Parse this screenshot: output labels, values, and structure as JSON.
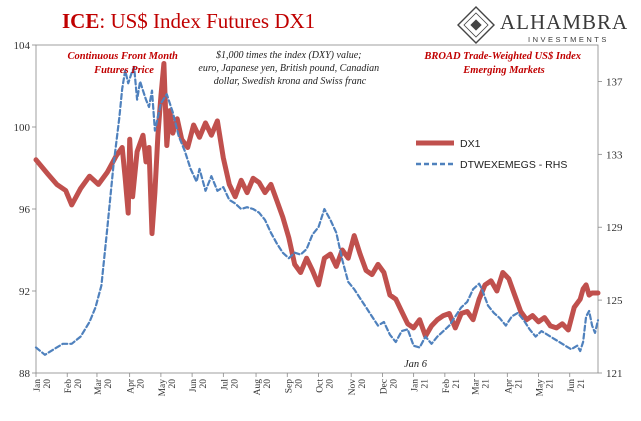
{
  "title": {
    "ice": "ICE",
    "rest": ": US$ Index Futures DX1"
  },
  "brand": {
    "name": "ALHAMBRA",
    "sub": "INVESTMENTS",
    "logo_icon": "alhambra-diamond-logo"
  },
  "notes": {
    "left": [
      "Continuous  Front Month",
      "Futures Price"
    ],
    "middle": [
      "$1,000 times the index (DXY) value;",
      "euro, Japanese yen, British pound, Canadian",
      "dollar, Swedish krona and Swiss franc"
    ],
    "right": [
      "BROAD Trade-Weighted US$ Index",
      "Emerging Markets"
    ]
  },
  "annotation": "Jan 6",
  "colors": {
    "dx1": "#c0504d",
    "em": "#4f81bd",
    "title": "#c00000"
  },
  "chart_data": {
    "type": "line",
    "x_ticks": [
      {
        "label": [
          "Jan",
          "20"
        ],
        "i": 0
      },
      {
        "label": [
          "Feb",
          "20"
        ],
        "i": 21
      },
      {
        "label": [
          "Mar",
          "20"
        ],
        "i": 41
      },
      {
        "label": [
          "Apr",
          "20"
        ],
        "i": 63
      },
      {
        "label": [
          "May",
          "20"
        ],
        "i": 84
      },
      {
        "label": [
          "Jun",
          "20"
        ],
        "i": 105
      },
      {
        "label": [
          "Jul",
          "20"
        ],
        "i": 126
      },
      {
        "label": [
          "Aug",
          "20"
        ],
        "i": 148
      },
      {
        "label": [
          "Sep",
          "20"
        ],
        "i": 169
      },
      {
        "label": [
          "Oct",
          "20"
        ],
        "i": 190
      },
      {
        "label": [
          "Nov",
          "20"
        ],
        "i": 212
      },
      {
        "label": [
          "Dec",
          "20"
        ],
        "i": 233
      },
      {
        "label": [
          "Jan",
          "21"
        ],
        "i": 254
      },
      {
        "label": [
          "Feb",
          "21"
        ],
        "i": 275
      },
      {
        "label": [
          "Mar",
          "21"
        ],
        "i": 295
      },
      {
        "label": [
          "Apr",
          "21"
        ],
        "i": 317
      },
      {
        "label": [
          "May",
          "21"
        ],
        "i": 338
      },
      {
        "label": [
          "Jun",
          "21"
        ],
        "i": 359
      }
    ],
    "x_count": 379,
    "y_left": {
      "min": 88,
      "max": 104,
      "ticks": [
        88,
        92,
        96,
        100,
        104
      ]
    },
    "y_right": {
      "min": 121,
      "max": 139,
      "ticks": [
        121,
        125,
        129,
        133,
        137
      ]
    },
    "series": [
      {
        "name": "DX1",
        "axis": "left",
        "style": "solid",
        "points": [
          [
            0,
            98.4
          ],
          [
            8,
            97.7
          ],
          [
            14,
            97.2
          ],
          [
            20,
            96.9
          ],
          [
            24,
            96.2
          ],
          [
            30,
            97.0
          ],
          [
            36,
            97.6
          ],
          [
            42,
            97.2
          ],
          [
            48,
            97.8
          ],
          [
            54,
            98.6
          ],
          [
            58,
            99.0
          ],
          [
            60,
            97.5
          ],
          [
            62,
            95.8
          ],
          [
            63,
            99.4
          ],
          [
            65,
            96.6
          ],
          [
            68,
            98.8
          ],
          [
            72,
            99.6
          ],
          [
            74,
            98.3
          ],
          [
            76,
            99.0
          ],
          [
            78,
            94.8
          ],
          [
            80,
            96.8
          ],
          [
            82,
            99.6
          ],
          [
            84,
            101.5
          ],
          [
            86,
            103.1
          ],
          [
            88,
            99.1
          ],
          [
            90,
            100.8
          ],
          [
            92,
            99.7
          ],
          [
            95,
            100.4
          ],
          [
            98,
            99.4
          ],
          [
            102,
            99.0
          ],
          [
            106,
            100.1
          ],
          [
            110,
            99.5
          ],
          [
            114,
            100.2
          ],
          [
            118,
            99.6
          ],
          [
            122,
            100.3
          ],
          [
            126,
            98.5
          ],
          [
            130,
            97.2
          ],
          [
            134,
            96.6
          ],
          [
            138,
            97.4
          ],
          [
            142,
            96.8
          ],
          [
            146,
            97.5
          ],
          [
            150,
            97.3
          ],
          [
            154,
            96.8
          ],
          [
            158,
            97.2
          ],
          [
            162,
            96.4
          ],
          [
            166,
            95.6
          ],
          [
            170,
            94.6
          ],
          [
            174,
            93.3
          ],
          [
            178,
            92.9
          ],
          [
            182,
            93.6
          ],
          [
            186,
            93.0
          ],
          [
            190,
            92.3
          ],
          [
            194,
            93.6
          ],
          [
            198,
            93.8
          ],
          [
            202,
            93.2
          ],
          [
            206,
            94.0
          ],
          [
            210,
            93.6
          ],
          [
            214,
            94.7
          ],
          [
            218,
            93.8
          ],
          [
            222,
            93.0
          ],
          [
            226,
            92.8
          ],
          [
            230,
            93.3
          ],
          [
            234,
            92.9
          ],
          [
            238,
            91.8
          ],
          [
            242,
            91.6
          ],
          [
            246,
            91.0
          ],
          [
            250,
            90.4
          ],
          [
            254,
            90.2
          ],
          [
            258,
            90.6
          ],
          [
            262,
            89.8
          ],
          [
            266,
            90.3
          ],
          [
            270,
            90.6
          ],
          [
            274,
            90.8
          ],
          [
            278,
            90.9
          ],
          [
            282,
            90.2
          ],
          [
            286,
            90.9
          ],
          [
            290,
            91.0
          ],
          [
            294,
            90.6
          ],
          [
            298,
            91.6
          ],
          [
            302,
            92.3
          ],
          [
            306,
            92.5
          ],
          [
            310,
            92.0
          ],
          [
            314,
            92.9
          ],
          [
            318,
            92.6
          ],
          [
            322,
            91.8
          ],
          [
            326,
            91.0
          ],
          [
            330,
            90.6
          ],
          [
            334,
            90.8
          ],
          [
            338,
            90.5
          ],
          [
            342,
            90.7
          ],
          [
            346,
            90.3
          ],
          [
            350,
            90.2
          ],
          [
            354,
            90.4
          ],
          [
            358,
            90.1
          ],
          [
            362,
            91.2
          ],
          [
            366,
            91.6
          ],
          [
            368,
            92.1
          ],
          [
            370,
            92.3
          ],
          [
            372,
            91.8
          ],
          [
            374,
            91.9
          ],
          [
            378,
            91.9
          ]
        ]
      },
      {
        "name": "DTWEXEMEGS - RHS",
        "axis": "right",
        "style": "dashed",
        "points": [
          [
            0,
            122.4
          ],
          [
            6,
            122.0
          ],
          [
            12,
            122.3
          ],
          [
            18,
            122.6
          ],
          [
            24,
            122.6
          ],
          [
            30,
            123.0
          ],
          [
            36,
            123.8
          ],
          [
            40,
            124.6
          ],
          [
            44,
            125.8
          ],
          [
            48,
            129.0
          ],
          [
            52,
            132.3
          ],
          [
            56,
            135.0
          ],
          [
            58,
            136.6
          ],
          [
            60,
            137.6
          ],
          [
            62,
            136.9
          ],
          [
            64,
            137.4
          ],
          [
            66,
            137.8
          ],
          [
            68,
            136.0
          ],
          [
            70,
            137.0
          ],
          [
            72,
            136.5
          ],
          [
            74,
            136.0
          ],
          [
            76,
            135.6
          ],
          [
            78,
            136.5
          ],
          [
            80,
            134.3
          ],
          [
            84,
            135.8
          ],
          [
            88,
            136.3
          ],
          [
            92,
            135.3
          ],
          [
            96,
            134.0
          ],
          [
            100,
            133.2
          ],
          [
            104,
            132.2
          ],
          [
            108,
            131.5
          ],
          [
            110,
            132.2
          ],
          [
            114,
            131.0
          ],
          [
            118,
            131.8
          ],
          [
            122,
            131.0
          ],
          [
            126,
            131.2
          ],
          [
            130,
            130.5
          ],
          [
            134,
            130.3
          ],
          [
            138,
            130.0
          ],
          [
            142,
            130.1
          ],
          [
            146,
            130.0
          ],
          [
            150,
            129.8
          ],
          [
            154,
            129.4
          ],
          [
            158,
            128.7
          ],
          [
            162,
            128.1
          ],
          [
            166,
            127.6
          ],
          [
            170,
            127.3
          ],
          [
            174,
            127.6
          ],
          [
            178,
            127.5
          ],
          [
            182,
            127.8
          ],
          [
            186,
            128.6
          ],
          [
            190,
            129.0
          ],
          [
            194,
            130.0
          ],
          [
            198,
            129.4
          ],
          [
            202,
            128.7
          ],
          [
            206,
            127.2
          ],
          [
            210,
            126.0
          ],
          [
            214,
            125.6
          ],
          [
            218,
            125.1
          ],
          [
            222,
            124.6
          ],
          [
            226,
            124.1
          ],
          [
            230,
            123.6
          ],
          [
            234,
            123.8
          ],
          [
            238,
            123.1
          ],
          [
            242,
            122.7
          ],
          [
            246,
            123.3
          ],
          [
            250,
            123.4
          ],
          [
            254,
            122.5
          ],
          [
            258,
            122.4
          ],
          [
            262,
            123.0
          ],
          [
            266,
            122.6
          ],
          [
            270,
            123.0
          ],
          [
            274,
            123.3
          ],
          [
            278,
            123.6
          ],
          [
            282,
            124.1
          ],
          [
            286,
            124.6
          ],
          [
            290,
            124.9
          ],
          [
            294,
            125.6
          ],
          [
            298,
            125.9
          ],
          [
            300,
            125.6
          ],
          [
            304,
            124.7
          ],
          [
            308,
            124.3
          ],
          [
            312,
            124.0
          ],
          [
            316,
            123.6
          ],
          [
            320,
            124.1
          ],
          [
            324,
            124.3
          ],
          [
            328,
            123.9
          ],
          [
            332,
            123.4
          ],
          [
            336,
            123.0
          ],
          [
            340,
            123.3
          ],
          [
            344,
            123.1
          ],
          [
            348,
            122.9
          ],
          [
            352,
            122.7
          ],
          [
            356,
            122.5
          ],
          [
            360,
            122.3
          ],
          [
            364,
            122.5
          ],
          [
            366,
            122.2
          ],
          [
            368,
            122.7
          ],
          [
            370,
            124.1
          ],
          [
            372,
            124.4
          ],
          [
            374,
            123.6
          ],
          [
            376,
            123.2
          ],
          [
            378,
            123.9
          ]
        ]
      }
    ],
    "legend": [
      {
        "name": "DX1",
        "style": "solid"
      },
      {
        "name": "DTWEXEMEGS - RHS",
        "style": "dashed"
      }
    ],
    "legend_position": "right"
  }
}
